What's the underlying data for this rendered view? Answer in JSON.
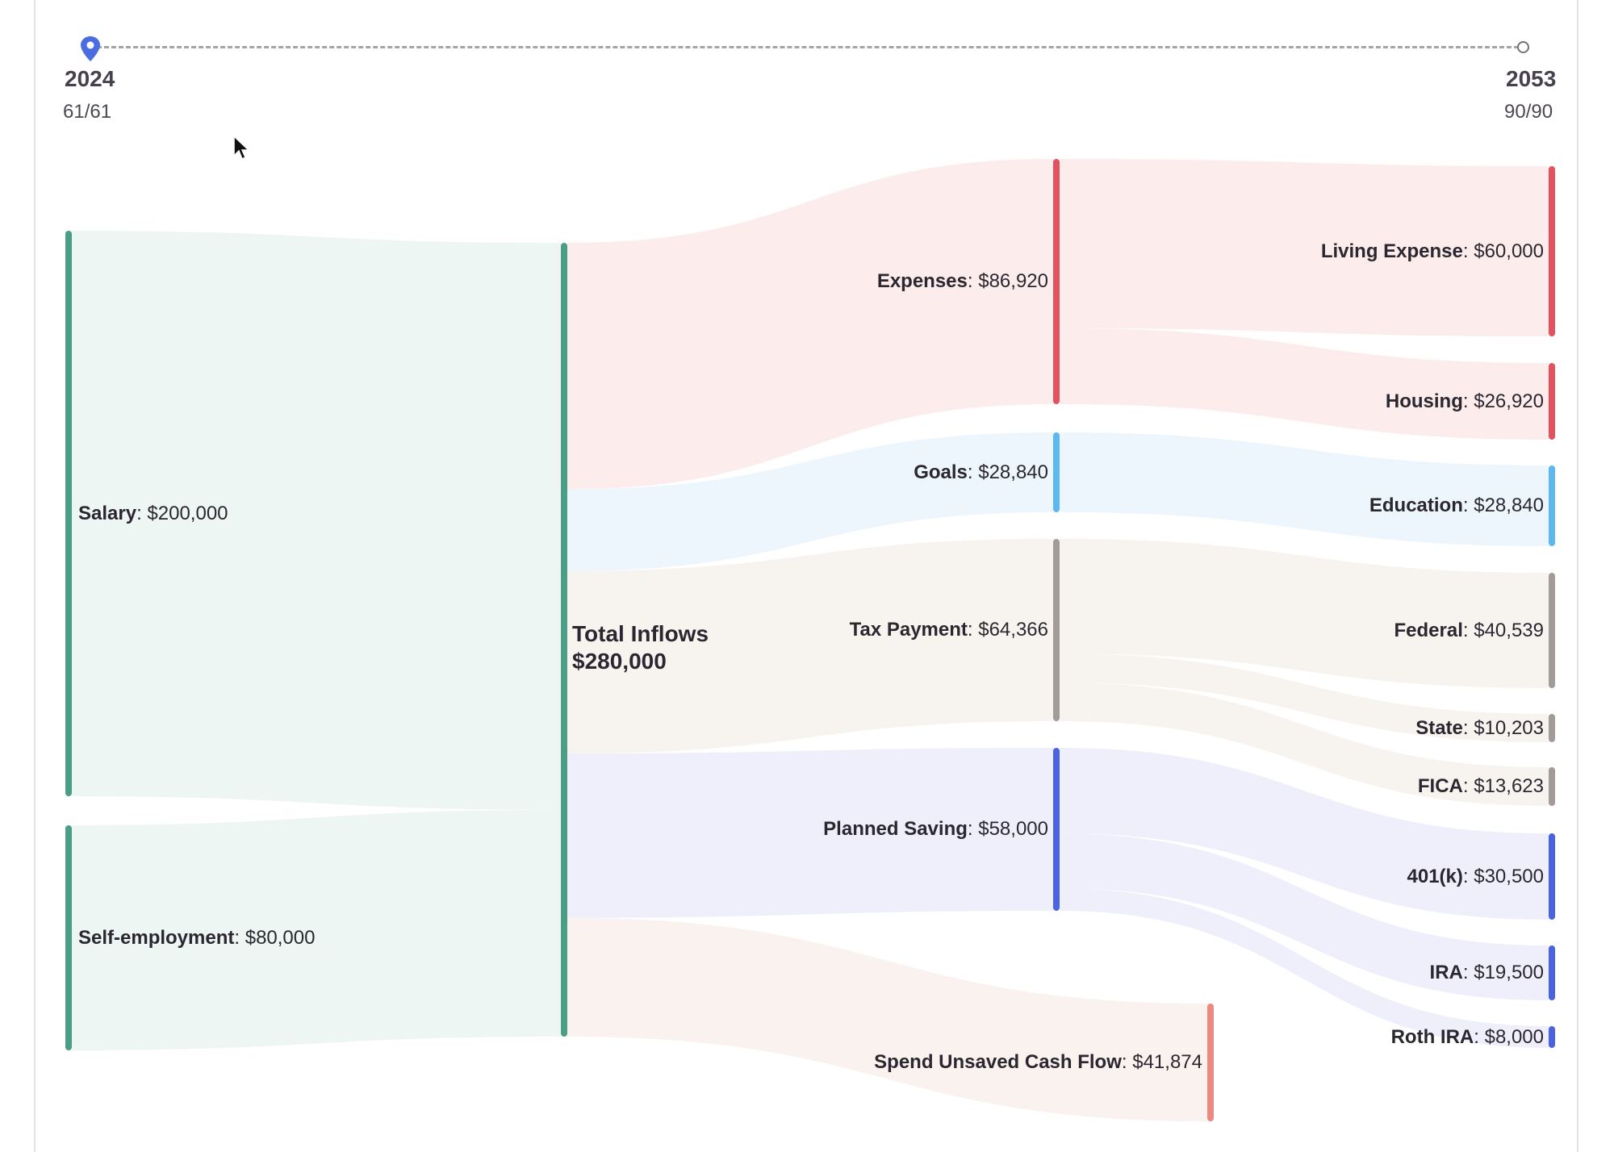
{
  "timeline": {
    "start_year": "2024",
    "start_age": "61/61",
    "end_year": "2053",
    "end_age": "90/90",
    "start_icon": "map-pin-icon",
    "end_icon": "circle-marker-icon"
  },
  "chart_data": {
    "type": "sankey",
    "total_label": "Total Inflows",
    "total_value": "$280,000",
    "nodes": [
      {
        "id": "salary",
        "name": "Salary",
        "value": 200000,
        "value_label": "$200,000",
        "color": "#4a9e85"
      },
      {
        "id": "selfemp",
        "name": "Self-employment",
        "value": 80000,
        "value_label": "$80,000",
        "color": "#4a9e85"
      },
      {
        "id": "total",
        "name": "Total Inflows",
        "value": 280000,
        "value_label": "$280,000",
        "color": "#4a9e85"
      },
      {
        "id": "expenses",
        "name": "Expenses",
        "value": 86920,
        "value_label": "$86,920",
        "color": "#e3525f"
      },
      {
        "id": "goals",
        "name": "Goals",
        "value": 28840,
        "value_label": "$28,840",
        "color": "#5cb8ee"
      },
      {
        "id": "tax",
        "name": "Tax Payment",
        "value": 64366,
        "value_label": "$64,366",
        "color": "#a19b99"
      },
      {
        "id": "saving",
        "name": "Planned Saving",
        "value": 58000,
        "value_label": "$58,000",
        "color": "#4a63e0"
      },
      {
        "id": "spend",
        "name": "Spend Unsaved Cash Flow",
        "value": 41874,
        "value_label": "$41,874",
        "color": "#ea8a80"
      },
      {
        "id": "living",
        "name": "Living Expense",
        "value": 60000,
        "value_label": "$60,000",
        "color": "#e3525f"
      },
      {
        "id": "housing",
        "name": "Housing",
        "value": 26920,
        "value_label": "$26,920",
        "color": "#e3525f"
      },
      {
        "id": "education",
        "name": "Education",
        "value": 28840,
        "value_label": "$28,840",
        "color": "#5cb8ee"
      },
      {
        "id": "federal",
        "name": "Federal",
        "value": 40539,
        "value_label": "$40,539",
        "color": "#a19b99"
      },
      {
        "id": "state",
        "name": "State",
        "value": 10203,
        "value_label": "$10,203",
        "color": "#a19b99"
      },
      {
        "id": "fica",
        "name": "FICA",
        "value": 13623,
        "value_label": "$13,623",
        "color": "#a19b99"
      },
      {
        "id": "k401",
        "name": "401(k)",
        "value": 30500,
        "value_label": "$30,500",
        "color": "#4a63e0"
      },
      {
        "id": "ira",
        "name": "IRA",
        "value": 19500,
        "value_label": "$19,500",
        "color": "#4a63e0"
      },
      {
        "id": "roth",
        "name": "Roth IRA",
        "value": 8000,
        "value_label": "$8,000",
        "color": "#4a63e0"
      }
    ],
    "links": [
      {
        "source": "salary",
        "target": "total",
        "value": 200000,
        "color": "#edf6f2"
      },
      {
        "source": "selfemp",
        "target": "total",
        "value": 80000,
        "color": "#edf6f2"
      },
      {
        "source": "total",
        "target": "expenses",
        "value": 86920,
        "color": "#fcecec"
      },
      {
        "source": "total",
        "target": "goals",
        "value": 28840,
        "color": "#edf6fc"
      },
      {
        "source": "total",
        "target": "tax",
        "value": 64366,
        "color": "#f7f3ef"
      },
      {
        "source": "total",
        "target": "saving",
        "value": 58000,
        "color": "#efeffb"
      },
      {
        "source": "total",
        "target": "spend",
        "value": 41874,
        "color": "#f9f2ee"
      },
      {
        "source": "expenses",
        "target": "living",
        "value": 60000,
        "color": "#fcecec"
      },
      {
        "source": "expenses",
        "target": "housing",
        "value": 26920,
        "color": "#fcecec"
      },
      {
        "source": "goals",
        "target": "education",
        "value": 28840,
        "color": "#edf6fc"
      },
      {
        "source": "tax",
        "target": "federal",
        "value": 40539,
        "color": "#f7f3ef"
      },
      {
        "source": "tax",
        "target": "state",
        "value": 10203,
        "color": "#f7f3ef"
      },
      {
        "source": "tax",
        "target": "fica",
        "value": 13623,
        "color": "#f7f3ef"
      },
      {
        "source": "saving",
        "target": "k401",
        "value": 30500,
        "color": "#efeffb"
      },
      {
        "source": "saving",
        "target": "ira",
        "value": 19500,
        "color": "#efeffb"
      },
      {
        "source": "saving",
        "target": "roth",
        "value": 8000,
        "color": "#efeffb"
      }
    ]
  }
}
